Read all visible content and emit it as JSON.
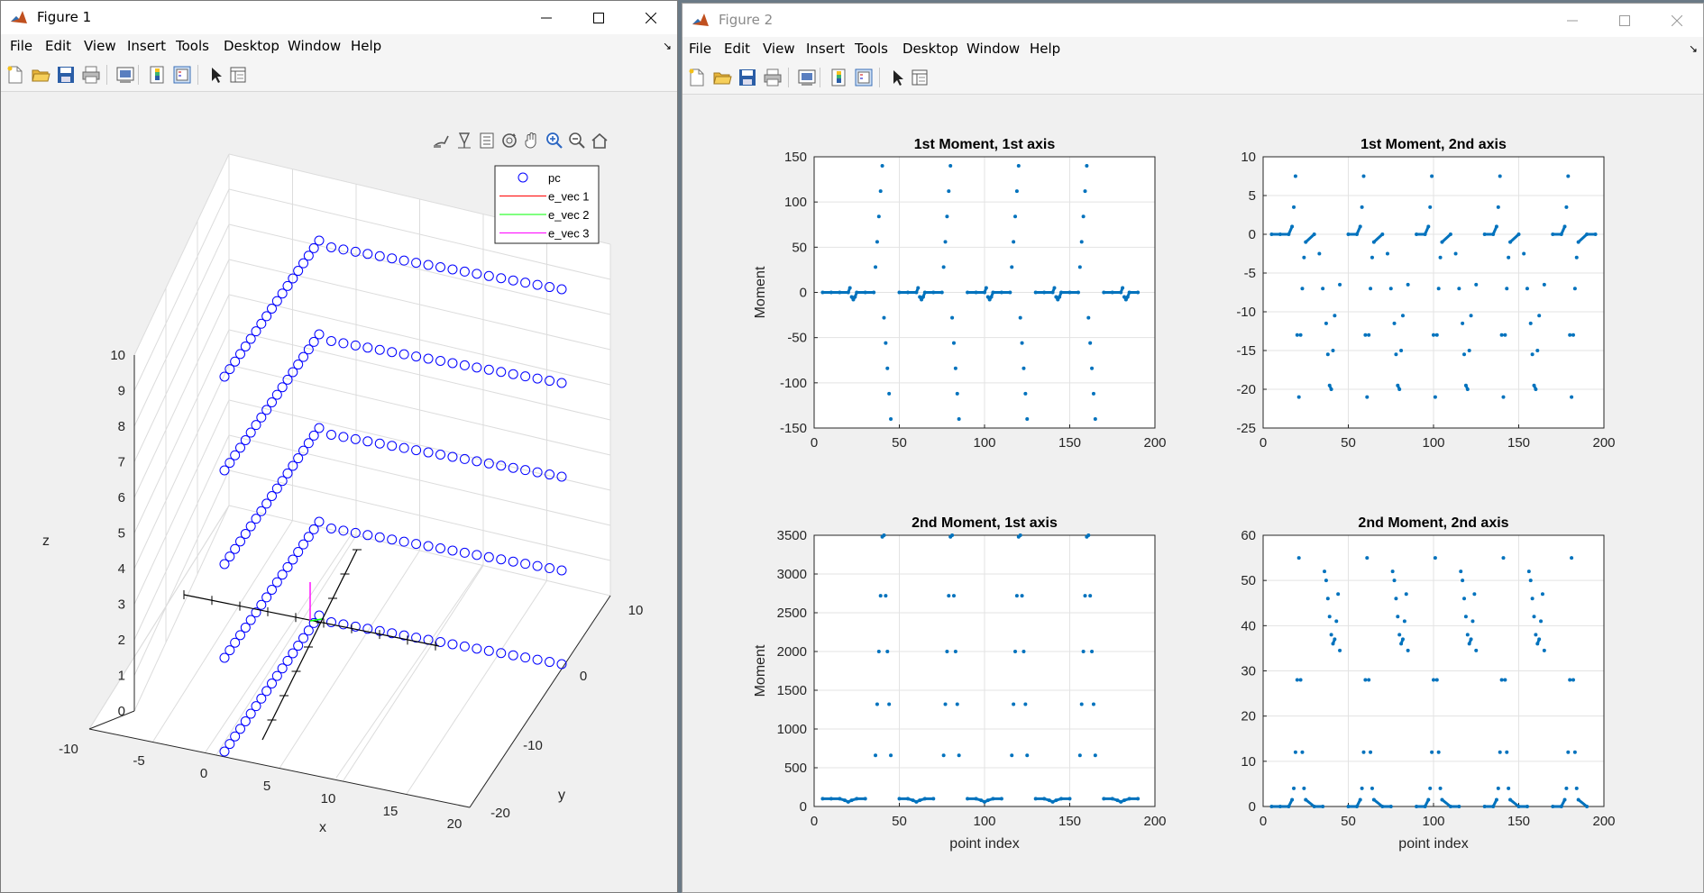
{
  "figure1": {
    "title": "Figure 1",
    "menu": [
      "File",
      "Edit",
      "View",
      "Insert",
      "Tools",
      "Desktop",
      "Window",
      "Help"
    ],
    "toolbar_icons": [
      "new-figure-icon",
      "open-file-icon",
      "save-icon",
      "print-icon",
      "link-plot-icon",
      "insert-colorbar-icon",
      "insert-legend-icon",
      "edit-plot-icon",
      "property-inspector-icon"
    ],
    "axes_toolbar_icons": [
      "brush-icon",
      "data-tips-icon",
      "export-icon",
      "rotate-3d-icon",
      "pan-icon",
      "zoom-in-icon",
      "zoom-out-icon",
      "home-icon"
    ],
    "legend": [
      {
        "label": "pc",
        "color": "#0000ff",
        "marker": "circle"
      },
      {
        "label": "e_vec 1",
        "color": "#ff0000",
        "marker": "line"
      },
      {
        "label": "e_vec 2",
        "color": "#00ff00",
        "marker": "line"
      },
      {
        "label": "e_vec 3",
        "color": "#ff00ff",
        "marker": "line"
      }
    ],
    "z_ticks": [
      "0",
      "1",
      "2",
      "3",
      "4",
      "5",
      "6",
      "7",
      "8",
      "9",
      "10"
    ],
    "x_ticks": [
      "-10",
      "-5",
      "0",
      "5",
      "10",
      "15",
      "20"
    ],
    "y_ticks": [
      "-20",
      "-10",
      "0",
      "10"
    ],
    "xlabel": "x",
    "ylabel": "y",
    "zlabel": "z"
  },
  "figure2": {
    "title": "Figure 2",
    "menu": [
      "File",
      "Edit",
      "View",
      "Insert",
      "Tools",
      "Desktop",
      "Window",
      "Help"
    ],
    "toolbar_icons": [
      "new-figure-icon",
      "open-file-icon",
      "save-icon",
      "print-icon",
      "link-plot-icon",
      "insert-colorbar-icon",
      "insert-legend-icon",
      "edit-plot-icon",
      "property-inspector-icon"
    ]
  },
  "chart_data": [
    {
      "type": "scatter",
      "title": "1st Moment, 1st axis",
      "ylabel": "Moment",
      "xlabel": "",
      "xlim": [
        0,
        200
      ],
      "ylim": [
        -150,
        150
      ],
      "x_ticks": [
        0,
        50,
        100,
        150,
        200
      ],
      "y_ticks": [
        -150,
        -100,
        -50,
        0,
        50,
        100,
        150
      ],
      "grid": true,
      "color": "#0072bd",
      "series": [
        {
          "values_note": "",
          "x": [
            5,
            10,
            15,
            20,
            21,
            22,
            23,
            24,
            25,
            30,
            35,
            36,
            37,
            38,
            39,
            40,
            41,
            42,
            43,
            44,
            45,
            50,
            55,
            60,
            61,
            62,
            63,
            64,
            65,
            70,
            75,
            76,
            77,
            78,
            79,
            80,
            81,
            82,
            83,
            84,
            85,
            90,
            95,
            100,
            101,
            102,
            103,
            104,
            105,
            110,
            115,
            116,
            117,
            118,
            119,
            120,
            121,
            122,
            123,
            124,
            125,
            130,
            135,
            140,
            141,
            142,
            143,
            144,
            145,
            150,
            155,
            156,
            157,
            158,
            159,
            160,
            161,
            162,
            163,
            164,
            165,
            170,
            175,
            180,
            181,
            182,
            183,
            184,
            185,
            190
          ],
          "y": [
            0,
            0,
            0,
            0,
            5,
            -5,
            -8,
            -5,
            0,
            0,
            0,
            28,
            56,
            84,
            112,
            140,
            -28,
            -56,
            -84,
            -112,
            -140,
            0,
            0,
            0,
            5,
            -5,
            -8,
            -5,
            0,
            0,
            0,
            28,
            56,
            84,
            112,
            140,
            -28,
            -56,
            -84,
            -112,
            -140,
            0,
            0,
            0,
            5,
            -5,
            -8,
            -5,
            0,
            0,
            0,
            28,
            56,
            84,
            112,
            140,
            -28,
            -56,
            -84,
            -112,
            -140,
            0,
            0,
            0,
            5,
            -5,
            -8,
            -5,
            0,
            0,
            0,
            28,
            56,
            84,
            112,
            140,
            -28,
            -56,
            -84,
            -112,
            -140,
            0,
            0,
            0,
            5,
            -5,
            -8,
            -5,
            0,
            0
          ]
        }
      ]
    },
    {
      "type": "scatter",
      "title": "1st Moment, 2nd axis",
      "ylabel": "",
      "xlabel": "",
      "xlim": [
        0,
        200
      ],
      "ylim": [
        -25,
        10
      ],
      "x_ticks": [
        0,
        50,
        100,
        150,
        200
      ],
      "y_ticks": [
        -25,
        -20,
        -15,
        -10,
        -5,
        0,
        5,
        10
      ],
      "grid": true,
      "color": "#0072bd",
      "series": [
        {
          "x": [
            5,
            10,
            15,
            17,
            18,
            19,
            20,
            21,
            22,
            23,
            24,
            25,
            30,
            33,
            35,
            37,
            38,
            39,
            40,
            41,
            42,
            45,
            50,
            55,
            57,
            58,
            59,
            60,
            61,
            62,
            63,
            64,
            65,
            70,
            73,
            75,
            77,
            78,
            79,
            80,
            81,
            82,
            85,
            90,
            95,
            97,
            98,
            99,
            100,
            101,
            102,
            103,
            104,
            105,
            110,
            113,
            115,
            117,
            118,
            119,
            120,
            121,
            122,
            125,
            130,
            135,
            137,
            138,
            139,
            140,
            141,
            142,
            143,
            144,
            145,
            150,
            153,
            155,
            157,
            158,
            159,
            160,
            161,
            162,
            165,
            170,
            175,
            177,
            178,
            179,
            180,
            181,
            182,
            183,
            184,
            185,
            190,
            195
          ],
          "y": [
            0,
            0,
            0,
            1,
            3.5,
            7.5,
            -13,
            -21,
            -13,
            -7,
            -3,
            -1,
            0,
            -2.5,
            -7,
            -11.5,
            -15.5,
            -19.5,
            -20,
            -15,
            -10.5,
            -6.5,
            0,
            0,
            1,
            3.5,
            7.5,
            -13,
            -21,
            -13,
            -7,
            -3,
            -1,
            0,
            -2.5,
            -7,
            -11.5,
            -15.5,
            -19.5,
            -20,
            -15,
            -10.5,
            -6.5,
            0,
            0,
            1,
            3.5,
            7.5,
            -13,
            -21,
            -13,
            -7,
            -3,
            -1,
            0,
            -2.5,
            -7,
            -11.5,
            -15.5,
            -19.5,
            -20,
            -15,
            -10.5,
            -6.5,
            0,
            0,
            1,
            3.5,
            7.5,
            -13,
            -21,
            -13,
            -7,
            -3,
            -1,
            0,
            -2.5,
            -7,
            -11.5,
            -15.5,
            -19.5,
            -20,
            -15,
            -10.5,
            -6.5,
            0,
            0,
            1,
            3.5,
            7.5,
            -13,
            -21,
            -13,
            -7,
            -3,
            -1,
            0,
            0
          ]
        }
      ]
    },
    {
      "type": "scatter",
      "title": "2nd Moment, 1st axis",
      "ylabel": "Moment",
      "xlabel": "point index",
      "xlim": [
        0,
        200
      ],
      "ylim": [
        0,
        3500
      ],
      "x_ticks": [
        0,
        50,
        100,
        150,
        200
      ],
      "y_ticks": [
        0,
        500,
        1000,
        1500,
        2000,
        2500,
        3000,
        3500
      ],
      "grid": true,
      "color": "#0072bd",
      "series": [
        {
          "x": [
            5,
            10,
            15,
            18,
            20,
            22,
            25,
            30,
            36,
            37,
            38,
            39,
            40,
            41,
            42,
            43,
            44,
            45,
            50,
            55,
            58,
            60,
            62,
            65,
            70,
            76,
            77,
            78,
            79,
            80,
            81,
            82,
            83,
            84,
            85,
            90,
            95,
            98,
            100,
            102,
            105,
            110,
            116,
            117,
            118,
            119,
            120,
            121,
            122,
            123,
            124,
            125,
            130,
            135,
            138,
            140,
            142,
            145,
            150,
            156,
            157,
            158,
            159,
            160,
            161,
            162,
            163,
            164,
            165,
            170,
            175,
            178,
            180,
            182,
            185,
            190
          ],
          "y": [
            100,
            100,
            100,
            80,
            60,
            80,
            100,
            100,
            660,
            1320,
            2000,
            2720,
            3480,
            3500,
            2720,
            2000,
            1320,
            660,
            100,
            100,
            80,
            60,
            80,
            100,
            100,
            660,
            1320,
            2000,
            2720,
            3480,
            3500,
            2720,
            2000,
            1320,
            660,
            100,
            100,
            80,
            60,
            80,
            100,
            100,
            660,
            1320,
            2000,
            2720,
            3480,
            3500,
            2720,
            2000,
            1320,
            660,
            100,
            100,
            80,
            60,
            80,
            100,
            100,
            660,
            1320,
            2000,
            2720,
            3480,
            3500,
            2720,
            2000,
            1320,
            660,
            100,
            100,
            80,
            60,
            80,
            100,
            100
          ]
        }
      ]
    },
    {
      "type": "scatter",
      "title": "2nd Moment, 2nd axis",
      "ylabel": "",
      "xlabel": "point index",
      "xlim": [
        0,
        200
      ],
      "ylim": [
        0,
        60
      ],
      "x_ticks": [
        0,
        50,
        100,
        150,
        200
      ],
      "y_ticks": [
        0,
        10,
        20,
        30,
        40,
        50,
        60
      ],
      "grid": true,
      "color": "#0072bd",
      "series": [
        {
          "x": [
            5,
            10,
            15,
            17,
            18,
            19,
            20,
            21,
            22,
            23,
            24,
            25,
            30,
            35,
            36,
            37,
            38,
            39,
            40,
            41,
            42,
            43,
            44,
            45,
            50,
            55,
            57,
            58,
            59,
            60,
            61,
            62,
            63,
            64,
            65,
            70,
            75,
            76,
            77,
            78,
            79,
            80,
            81,
            82,
            83,
            84,
            85,
            90,
            95,
            97,
            98,
            99,
            100,
            101,
            102,
            103,
            104,
            105,
            110,
            115,
            116,
            117,
            118,
            119,
            120,
            121,
            122,
            123,
            124,
            125,
            130,
            135,
            137,
            138,
            139,
            140,
            141,
            142,
            143,
            144,
            145,
            150,
            155,
            156,
            157,
            158,
            159,
            160,
            161,
            162,
            163,
            164,
            165,
            170,
            175,
            177,
            178,
            179,
            180,
            181,
            182,
            183,
            184,
            185,
            190
          ],
          "y": [
            0,
            0,
            0,
            1.5,
            4,
            12,
            28,
            55,
            28,
            12,
            4,
            1.5,
            0,
            0,
            52,
            50,
            46,
            42,
            38,
            36,
            37,
            41,
            47,
            34.5,
            0,
            0,
            1.5,
            4,
            12,
            28,
            55,
            28,
            12,
            4,
            1.5,
            0,
            0,
            52,
            50,
            46,
            42,
            38,
            36,
            37,
            41,
            47,
            34.5,
            0,
            0,
            1.5,
            4,
            12,
            28,
            55,
            28,
            12,
            4,
            1.5,
            0,
            0,
            52,
            50,
            46,
            42,
            38,
            36,
            37,
            41,
            47,
            34.5,
            0,
            0,
            1.5,
            4,
            12,
            28,
            55,
            28,
            12,
            4,
            1.5,
            0,
            0,
            52,
            50,
            46,
            42,
            38,
            36,
            37,
            41,
            47,
            34.5,
            0,
            0,
            1.5,
            4,
            12,
            28,
            55,
            28,
            12,
            4,
            1.5,
            0
          ]
        }
      ]
    }
  ]
}
